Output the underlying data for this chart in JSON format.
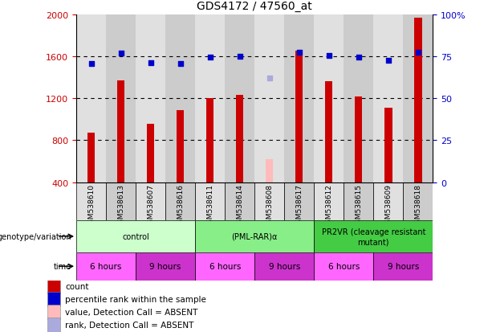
{
  "title": "GDS4172 / 47560_at",
  "samples": [
    "GSM538610",
    "GSM538613",
    "GSM538607",
    "GSM538616",
    "GSM538611",
    "GSM538614",
    "GSM538608",
    "GSM538617",
    "GSM538612",
    "GSM538615",
    "GSM538609",
    "GSM538618"
  ],
  "bar_values": [
    870,
    1370,
    960,
    1090,
    1200,
    1230,
    620,
    1650,
    1360,
    1220,
    1110,
    1970
  ],
  "bar_colors": [
    "#cc0000",
    "#cc0000",
    "#cc0000",
    "#cc0000",
    "#cc0000",
    "#cc0000",
    "#ffbbbb",
    "#cc0000",
    "#cc0000",
    "#cc0000",
    "#cc0000",
    "#cc0000"
  ],
  "dot_values": [
    1530,
    1630,
    1540,
    1530,
    1590,
    1600,
    1390,
    1640,
    1610,
    1590,
    1560,
    1640
  ],
  "dot_colors": [
    "#0000cc",
    "#0000cc",
    "#0000cc",
    "#0000cc",
    "#0000cc",
    "#0000cc",
    "#aaaadd",
    "#0000cc",
    "#0000cc",
    "#0000cc",
    "#0000cc",
    "#0000cc"
  ],
  "ylim_left": [
    400,
    2000
  ],
  "ylim_right": [
    0,
    100
  ],
  "yticks_left": [
    400,
    800,
    1200,
    1600,
    2000
  ],
  "yticks_right": [
    0,
    25,
    50,
    75,
    100
  ],
  "ytick_right_labels": [
    "0",
    "25",
    "50",
    "75",
    "100%"
  ],
  "grid_values": [
    800,
    1200,
    1600
  ],
  "col_bg_colors": [
    "#e0e0e0",
    "#cccccc"
  ],
  "groups": [
    {
      "label": "control",
      "start": 0,
      "end": 4,
      "color": "#ccffcc"
    },
    {
      "label": "(PML-RAR)α",
      "start": 4,
      "end": 8,
      "color": "#88ee88"
    },
    {
      "label": "PR2VR (cleavage resistant\nmutant)",
      "start": 8,
      "end": 12,
      "color": "#44cc44"
    }
  ],
  "time_groups": [
    {
      "label": "6 hours",
      "start": 0,
      "end": 2,
      "color": "#ff66ff"
    },
    {
      "label": "9 hours",
      "start": 2,
      "end": 4,
      "color": "#cc33cc"
    },
    {
      "label": "6 hours",
      "start": 4,
      "end": 6,
      "color": "#ff66ff"
    },
    {
      "label": "9 hours",
      "start": 6,
      "end": 8,
      "color": "#cc33cc"
    },
    {
      "label": "6 hours",
      "start": 8,
      "end": 10,
      "color": "#ff66ff"
    },
    {
      "label": "9 hours",
      "start": 10,
      "end": 12,
      "color": "#cc33cc"
    }
  ],
  "legend_items": [
    {
      "label": "count",
      "color": "#cc0000"
    },
    {
      "label": "percentile rank within the sample",
      "color": "#0000cc"
    },
    {
      "label": "value, Detection Call = ABSENT",
      "color": "#ffbbbb"
    },
    {
      "label": "rank, Detection Call = ABSENT",
      "color": "#aaaadd"
    }
  ],
  "geno_label": "genotype/variation",
  "time_label": "time",
  "bar_width": 0.25,
  "dot_size": 22,
  "figure_bg": "#ffffff"
}
